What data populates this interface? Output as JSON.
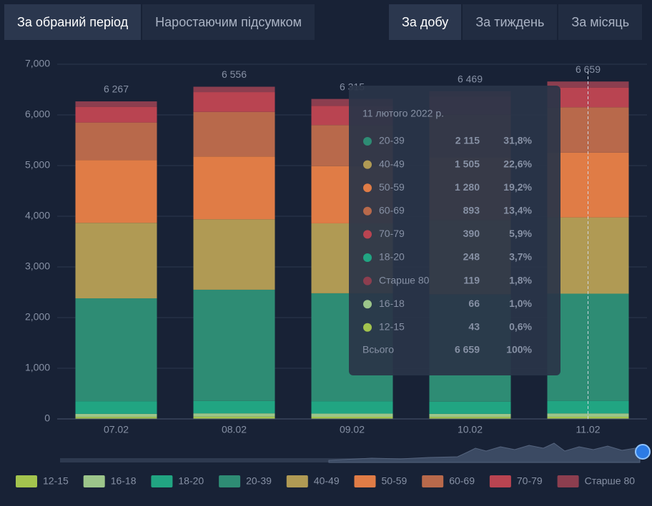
{
  "tabs_left": [
    "За обраний період",
    "Наростаючим підсумком"
  ],
  "tabs_right": [
    "За добу",
    "За тиждень",
    "За місяць"
  ],
  "chart_data": {
    "type": "stacked-bar",
    "categories": [
      "07.02",
      "08.02",
      "09.02",
      "10.02",
      "11.02"
    ],
    "series": [
      {
        "name": "12-15",
        "color": "#a3c44e",
        "values": [
          40,
          45,
          42,
          40,
          43
        ]
      },
      {
        "name": "16-18",
        "color": "#9cc58a",
        "values": [
          60,
          65,
          63,
          60,
          66
        ]
      },
      {
        "name": "18-20",
        "color": "#21a582",
        "values": [
          250,
          245,
          245,
          240,
          248
        ]
      },
      {
        "name": "20-39",
        "color": "#2e8c74",
        "values": [
          2030,
          2195,
          2130,
          2120,
          2115
        ]
      },
      {
        "name": "40-49",
        "color": "#b09a54",
        "values": [
          1490,
          1390,
          1380,
          1460,
          1505
        ]
      },
      {
        "name": "50-59",
        "color": "#e07c46",
        "values": [
          1240,
          1240,
          1130,
          1240,
          1280
        ]
      },
      {
        "name": "60-69",
        "color": "#b8694b",
        "values": [
          740,
          880,
          810,
          850,
          893
        ]
      },
      {
        "name": "70-79",
        "color": "#b94451",
        "values": [
          310,
          390,
          380,
          350,
          390
        ]
      },
      {
        "name": "Старше 80",
        "color": "#8c3e4f",
        "values": [
          107,
          106,
          135,
          109,
          119
        ]
      }
    ],
    "totals": [
      6267,
      6556,
      6315,
      6469,
      6659
    ],
    "total_labels": [
      "6 267",
      "6 556",
      "6 315",
      "6 469",
      "6 659"
    ],
    "ylim": [
      0,
      7000
    ],
    "yticks": [
      0,
      {
        "value": 1000,
        "label": "1,000"
      },
      {
        "value": 2000,
        "label": "2,000"
      },
      {
        "value": 3000,
        "label": "3,000"
      },
      {
        "value": 4000,
        "label": "4,000"
      },
      {
        "value": 5000,
        "label": "5,000"
      },
      {
        "value": 6000,
        "label": "6,000"
      },
      {
        "value": 7000,
        "label": "7,000"
      }
    ],
    "grid": true,
    "tooltip": {
      "title": "11 лютого 2022 р.",
      "rows": [
        {
          "name": "20-39",
          "value": "2 115",
          "percent": "31,8%"
        },
        {
          "name": "40-49",
          "value": "1 505",
          "percent": "22,6%"
        },
        {
          "name": "50-59",
          "value": "1 280",
          "percent": "19,2%"
        },
        {
          "name": "60-69",
          "value": "893",
          "percent": "13,4%"
        },
        {
          "name": "70-79",
          "value": "390",
          "percent": "5,9%"
        },
        {
          "name": "18-20",
          "value": "248",
          "percent": "3,7%"
        },
        {
          "name": "Старше 80",
          "value": "119",
          "percent": "1,8%"
        },
        {
          "name": "16-18",
          "value": "66",
          "percent": "1,0%"
        },
        {
          "name": "12-15",
          "value": "43",
          "percent": "0,6%"
        }
      ],
      "total": {
        "name": "Всього",
        "value": "6 659",
        "percent": "100%"
      }
    }
  }
}
